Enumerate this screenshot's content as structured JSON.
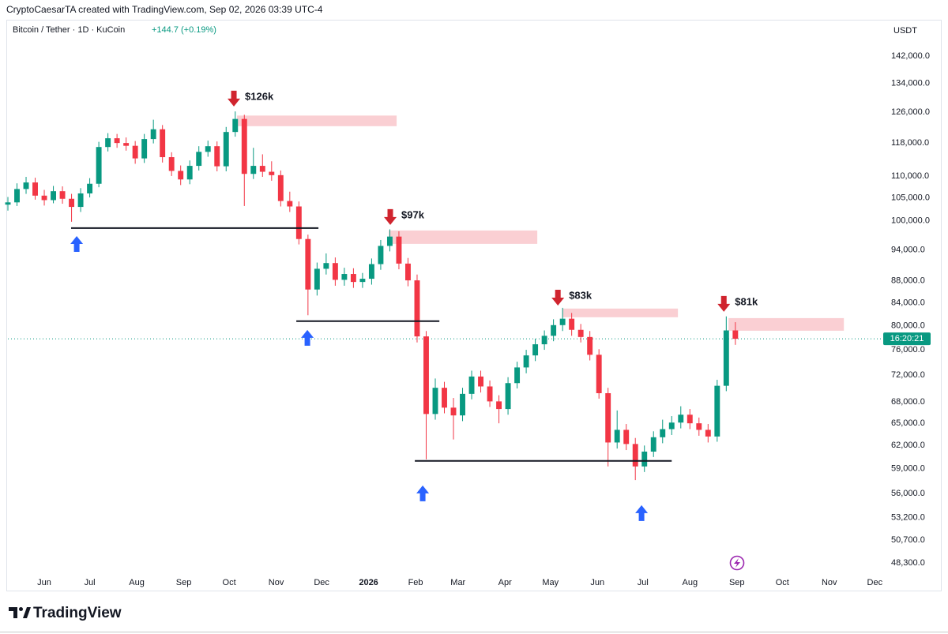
{
  "header": {
    "credit": "CryptoCaesarTA created with TradingView.com, Sep 02, 2026 03:39 UTC-4",
    "brand": "TradingView"
  },
  "chart_data": {
    "type": "candlestick",
    "symbol": "Bitcoin / Tether · 1D · KuCoin",
    "change": "+144.7 (+0.19%)",
    "currency": "USDT",
    "log_scale": true,
    "grid": false,
    "up_color": "#089981",
    "down_color": "#f23645",
    "xlim": [
      0,
      576
    ],
    "xticks": [
      {
        "value": 24,
        "label": "Jun"
      },
      {
        "value": 54,
        "label": "Jul"
      },
      {
        "value": 85,
        "label": "Aug"
      },
      {
        "value": 116,
        "label": "Sep"
      },
      {
        "value": 146,
        "label": "Oct"
      },
      {
        "value": 177,
        "label": "Nov"
      },
      {
        "value": 207,
        "label": "Dec"
      },
      {
        "value": 238,
        "label": "2026"
      },
      {
        "value": 269,
        "label": "Feb"
      },
      {
        "value": 297,
        "label": "Mar"
      },
      {
        "value": 328,
        "label": "Apr"
      },
      {
        "value": 358,
        "label": "May"
      },
      {
        "value": 389,
        "label": "Jun"
      },
      {
        "value": 419,
        "label": "Jul"
      },
      {
        "value": 450,
        "label": "Aug"
      },
      {
        "value": 481,
        "label": "Sep"
      },
      {
        "value": 511,
        "label": "Oct"
      },
      {
        "value": 542,
        "label": "Nov"
      },
      {
        "value": 572,
        "label": "Dec"
      }
    ],
    "ylim": [
      47330,
      152100
    ],
    "yticks": [
      {
        "value": 142000,
        "label": "142,000.0"
      },
      {
        "value": 134000,
        "label": "134,000.0"
      },
      {
        "value": 126000,
        "label": "126,000.0"
      },
      {
        "value": 118000,
        "label": "118,000.0"
      },
      {
        "value": 110000,
        "label": "110,000.0"
      },
      {
        "value": 105000,
        "label": "105,000.0"
      },
      {
        "value": 100000,
        "label": "100,000.0"
      },
      {
        "value": 94000,
        "label": "94,000.0"
      },
      {
        "value": 88000,
        "label": "88,000.0"
      },
      {
        "value": 84000,
        "label": "84,000.0"
      },
      {
        "value": 80000,
        "label": "80,000.0"
      },
      {
        "value": 76000,
        "label": "76,000.0"
      },
      {
        "value": 72000,
        "label": "72,000.0"
      },
      {
        "value": 68000,
        "label": "68,000.0"
      },
      {
        "value": 65000,
        "label": "65,000.0"
      },
      {
        "value": 62000,
        "label": "62,000.0"
      },
      {
        "value": 59000,
        "label": "59,000.0"
      },
      {
        "value": 56000,
        "label": "56,000.0"
      },
      {
        "value": 53200,
        "label": "53,200.0"
      },
      {
        "value": 50700,
        "label": "50,700.0"
      },
      {
        "value": 48300,
        "label": "48,300.0"
      }
    ],
    "x": [
      0,
      6,
      12,
      18,
      24,
      30,
      36,
      42,
      48,
      54,
      60,
      66,
      72,
      78,
      84,
      90,
      96,
      102,
      108,
      114,
      120,
      126,
      132,
      138,
      144,
      150,
      156,
      162,
      168,
      174,
      180,
      186,
      192,
      198,
      204,
      210,
      216,
      222,
      228,
      234,
      240,
      246,
      252,
      258,
      264,
      270,
      276,
      282,
      288,
      294,
      300,
      306,
      312,
      318,
      324,
      330,
      336,
      342,
      348,
      354,
      360,
      366,
      372,
      378,
      384,
      390,
      396,
      402,
      408,
      414,
      420,
      426,
      432,
      438,
      444,
      450,
      456,
      462,
      468,
      474,
      480
    ],
    "open": [
      103500,
      104000,
      107000,
      108500,
      105500,
      104500,
      106500,
      104800,
      103000,
      106000,
      108200,
      117000,
      119200,
      118000,
      117300,
      114200,
      119000,
      121500,
      114500,
      111200,
      109200,
      112400,
      115800,
      117200,
      112300,
      120800,
      124200,
      110500,
      112400,
      111000,
      110200,
      104300,
      103100,
      96200,
      86400,
      90300,
      91400,
      88200,
      89300,
      87800,
      88400,
      91200,
      94800,
      96700,
      91300,
      88100,
      78200,
      66300,
      70100,
      67200,
      66100,
      69200,
      71800,
      70300,
      68100,
      67000,
      70800,
      73200,
      75100,
      76900,
      78300,
      80100,
      81200,
      79300,
      78100,
      75200,
      69300,
      62400,
      64100,
      62200,
      59300,
      61200,
      63100,
      64200,
      65100,
      66200,
      65000,
      64100,
      63200,
      70400,
      79200
    ],
    "high": [
      105200,
      108300,
      109800,
      109600,
      106800,
      107700,
      107600,
      105900,
      107200,
      109500,
      118300,
      120500,
      120300,
      119400,
      118500,
      120300,
      124000,
      122600,
      115700,
      112500,
      113700,
      117200,
      118600,
      118400,
      122100,
      126200,
      125300,
      116800,
      115200,
      113500,
      111300,
      106400,
      104200,
      97100,
      91500,
      93300,
      92500,
      90500,
      90400,
      89500,
      92300,
      96000,
      98200,
      97800,
      92400,
      89200,
      79100,
      71500,
      71000,
      68600,
      70100,
      72700,
      72700,
      71200,
      69000,
      71700,
      74100,
      76000,
      77800,
      79200,
      81100,
      83100,
      82200,
      80300,
      79100,
      76100,
      70100,
      66800,
      64900,
      63000,
      62000,
      63900,
      65500,
      66000,
      67400,
      67000,
      65800,
      64900,
      71300,
      81600,
      80600
    ],
    "low": [
      102200,
      103200,
      105900,
      104600,
      103300,
      103800,
      103700,
      99800,
      101900,
      105100,
      107400,
      115900,
      116800,
      116100,
      112900,
      113100,
      117900,
      113200,
      110000,
      107900,
      108100,
      111300,
      114600,
      111100,
      111100,
      119600,
      103200,
      109300,
      109800,
      108900,
      103100,
      101900,
      95100,
      81800,
      85300,
      89200,
      87100,
      87100,
      86700,
      86700,
      87300,
      90100,
      93700,
      90200,
      87000,
      77200,
      60200,
      65500,
      66400,
      62800,
      65300,
      68400,
      69400,
      67300,
      65000,
      66200,
      70000,
      72300,
      74200,
      76000,
      77400,
      79100,
      78300,
      77200,
      74300,
      68500,
      59300,
      61600,
      61400,
      57600,
      58600,
      60500,
      62300,
      63400,
      64300,
      64200,
      63300,
      62400,
      62500,
      69600,
      76800
    ],
    "close": [
      104000,
      107000,
      108500,
      105500,
      104500,
      106500,
      104800,
      103000,
      106000,
      108200,
      117000,
      119200,
      118000,
      117300,
      114200,
      119000,
      121500,
      114500,
      111200,
      109200,
      112400,
      115800,
      117200,
      112300,
      120800,
      124200,
      110500,
      112400,
      111000,
      110200,
      104300,
      103100,
      96200,
      86400,
      90300,
      91400,
      88200,
      89300,
      87800,
      88400,
      91200,
      94800,
      96700,
      91300,
      88100,
      78200,
      66300,
      70100,
      67200,
      66100,
      69200,
      71800,
      70300,
      68100,
      67000,
      70800,
      73200,
      75100,
      76900,
      78300,
      80100,
      81200,
      79300,
      78100,
      75200,
      69300,
      62400,
      64100,
      62200,
      59300,
      61200,
      63100,
      64200,
      65100,
      66200,
      65000,
      64100,
      63200,
      70400,
      79200,
      77800
    ],
    "last_price": 77800,
    "countdown": "16:20:21",
    "support_lines": [
      {
        "x": [
          41.7,
          204.9
        ],
        "y": 98460
      },
      {
        "x": [
          190.3,
          284.7
        ],
        "y": 80770
      },
      {
        "x": [
          268.5,
          438
        ],
        "y": 60000
      }
    ],
    "resistance_zones": [
      {
        "x": [
          151.2,
          256.5
        ],
        "y": [
          125100,
          122300
        ]
      },
      {
        "x": [
          251.3,
          349.3
        ],
        "y": [
          97960,
          95210
        ]
      },
      {
        "x": [
          366,
          442.1
        ],
        "y": [
          82970,
          81450
        ]
      },
      {
        "x": [
          475.5,
          551.6
        ],
        "y": [
          81300,
          79150
        ]
      }
    ],
    "sell_markers": [
      {
        "x": 149.1,
        "y": 129700,
        "label": "$126k"
      },
      {
        "x": 252.3,
        "y": 100800,
        "label": "$97k"
      },
      {
        "x": 362.9,
        "y": 84920,
        "label": "$83k"
      },
      {
        "x": 472.4,
        "y": 83810,
        "label": "$81k"
      }
    ],
    "buy_markers": [
      {
        "x": 45.4,
        "y": 95200
      },
      {
        "x": 197.6,
        "y": 77970
      },
      {
        "x": 273.7,
        "y": 56000
      },
      {
        "x": 418.1,
        "y": 53700
      }
    ]
  }
}
